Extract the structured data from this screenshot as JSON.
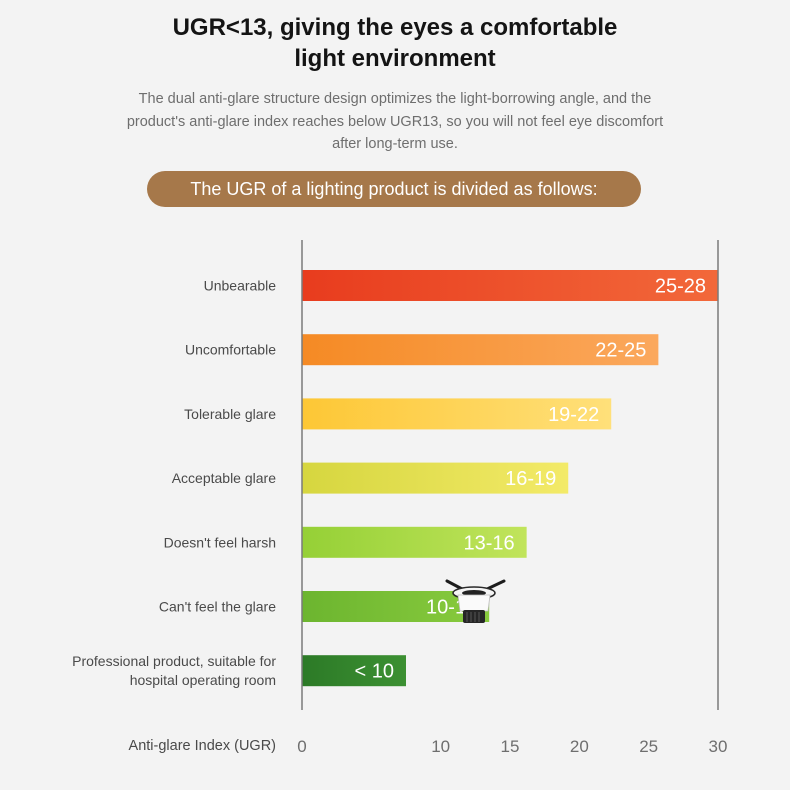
{
  "header": {
    "title_line1": "UGR<13, giving the eyes a comfortable",
    "title_line2": "light environment",
    "description_line1": "The dual anti-glare structure design optimizes the light-borrowing angle, and the",
    "description_line2": "product's anti-glare index reaches below UGR13, so you will not feel eye discomfort",
    "description_line3": "after long-term use.",
    "banner": "The UGR of a lighting product is divided as follows:"
  },
  "chart_data": {
    "type": "bar",
    "orientation": "horizontal",
    "categories": [
      [
        "Unbearable"
      ],
      [
        "Uncomfortable"
      ],
      [
        "Tolerable glare"
      ],
      [
        "Acceptable glare"
      ],
      [
        "Doesn't feel harsh"
      ],
      [
        "Can't feel the glare"
      ],
      [
        "Professional product, suitable for",
        "hospital operating room"
      ]
    ],
    "values": [
      30,
      25.7,
      22.3,
      19.2,
      16.2,
      13.5,
      7.5
    ],
    "data_labels": [
      "25-28",
      "22-25",
      "19-22",
      "16-19",
      "13-16",
      "10-13",
      "< 10"
    ],
    "colors": [
      [
        "#e83c1e",
        "#f2683a"
      ],
      [
        "#f58a24",
        "#fba85d"
      ],
      [
        "#fdc735",
        "#ffe07a"
      ],
      [
        "#d6d63f",
        "#f3ea68"
      ],
      [
        "#95d036",
        "#c1e45b"
      ],
      [
        "#6cb52f",
        "#89cb3e"
      ],
      [
        "#2c7a27",
        "#3c9032"
      ]
    ],
    "xlabel": "Anti-glare Index (UGR)",
    "xlim": [
      0,
      30
    ],
    "xticks": [
      0,
      10,
      15,
      20,
      25,
      30
    ],
    "grid": false
  }
}
